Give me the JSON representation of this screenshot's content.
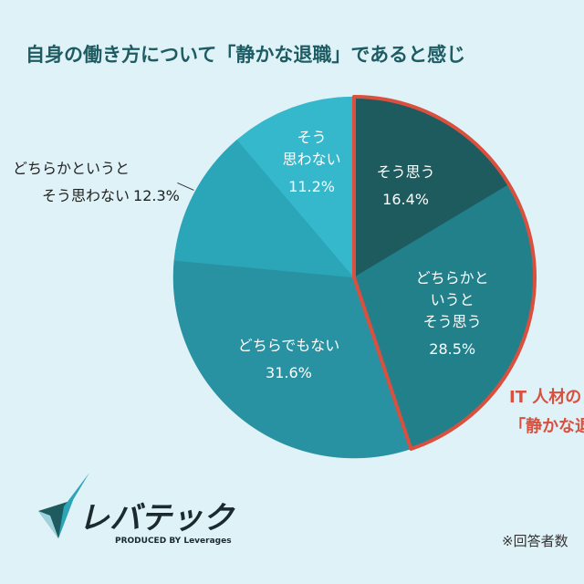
{
  "chart_data": {
    "type": "pie",
    "title": "自身の働き方について「静かな退職」であると感じ",
    "categories": [
      "そう思う",
      "どちらかと\nいうと\nそう思う",
      "どちらでもない",
      "どちらかというと\nそう思わない",
      "そう\n思わない"
    ],
    "values": [
      16.4,
      28.5,
      31.6,
      12.3,
      11.2
    ],
    "value_labels": [
      "16.4%",
      "28.5%",
      "31.6%",
      "12.3%",
      "11.2%"
    ],
    "colors": [
      "#1d5b5f",
      "#22808a",
      "#2892a2",
      "#2ba5b8",
      "#36b8cc"
    ],
    "highlight": [
      0,
      1
    ],
    "highlight_color": "#d9503f",
    "annotation": "IT 人材の\n「静かな退",
    "footnote": "※回答者数",
    "logo": {
      "name": "レバテック",
      "tagline": "PRODUCED BY Leverages"
    }
  }
}
